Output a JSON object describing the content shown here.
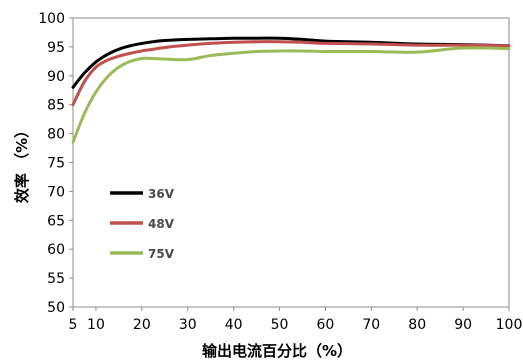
{
  "chart_data": {
    "type": "line",
    "title": "",
    "xlabel": "输出电流百分比（%）",
    "ylabel": "效率 （%）",
    "xlim": [
      5,
      100
    ],
    "ylim": [
      50,
      100
    ],
    "xticks": [
      5,
      10,
      20,
      30,
      40,
      50,
      60,
      70,
      80,
      90,
      100
    ],
    "yticks": [
      50,
      55,
      60,
      65,
      70,
      75,
      80,
      85,
      90,
      95,
      100
    ],
    "grid": false,
    "legend_position": "center-left",
    "series": [
      {
        "name": "36V",
        "color": "#000000",
        "x": [
          5,
          7.5,
          10,
          12.5,
          15,
          17.5,
          20,
          22.5,
          25,
          30,
          35,
          40,
          45,
          50,
          55,
          60,
          70,
          80,
          90,
          100
        ],
        "y": [
          88.0,
          90.5,
          92.4,
          93.7,
          94.6,
          95.2,
          95.6,
          95.9,
          96.1,
          96.3,
          96.4,
          96.5,
          96.5,
          96.5,
          96.3,
          96.0,
          95.8,
          95.5,
          95.4,
          95.2
        ]
      },
      {
        "name": "48V",
        "color": "#c0504d",
        "x": [
          5,
          7.5,
          10,
          12.5,
          15,
          17.5,
          20,
          22.5,
          25,
          30,
          35,
          40,
          45,
          50,
          55,
          60,
          70,
          80,
          90,
          100
        ],
        "y": [
          85.0,
          89.0,
          91.5,
          92.7,
          93.4,
          93.9,
          94.3,
          94.6,
          94.9,
          95.3,
          95.6,
          95.8,
          95.9,
          95.9,
          95.8,
          95.6,
          95.5,
          95.3,
          95.3,
          95.2
        ]
      },
      {
        "name": "75V",
        "color": "#9bbb59",
        "x": [
          5,
          7.5,
          10,
          12.5,
          15,
          17.5,
          20,
          22.5,
          25,
          30,
          35,
          40,
          45,
          50,
          55,
          60,
          70,
          80,
          90,
          100
        ],
        "y": [
          78.5,
          83.5,
          87.2,
          89.8,
          91.5,
          92.5,
          93.0,
          93.0,
          92.9,
          92.8,
          93.5,
          93.9,
          94.2,
          94.3,
          94.3,
          94.2,
          94.2,
          94.1,
          94.8,
          94.7
        ]
      }
    ]
  }
}
